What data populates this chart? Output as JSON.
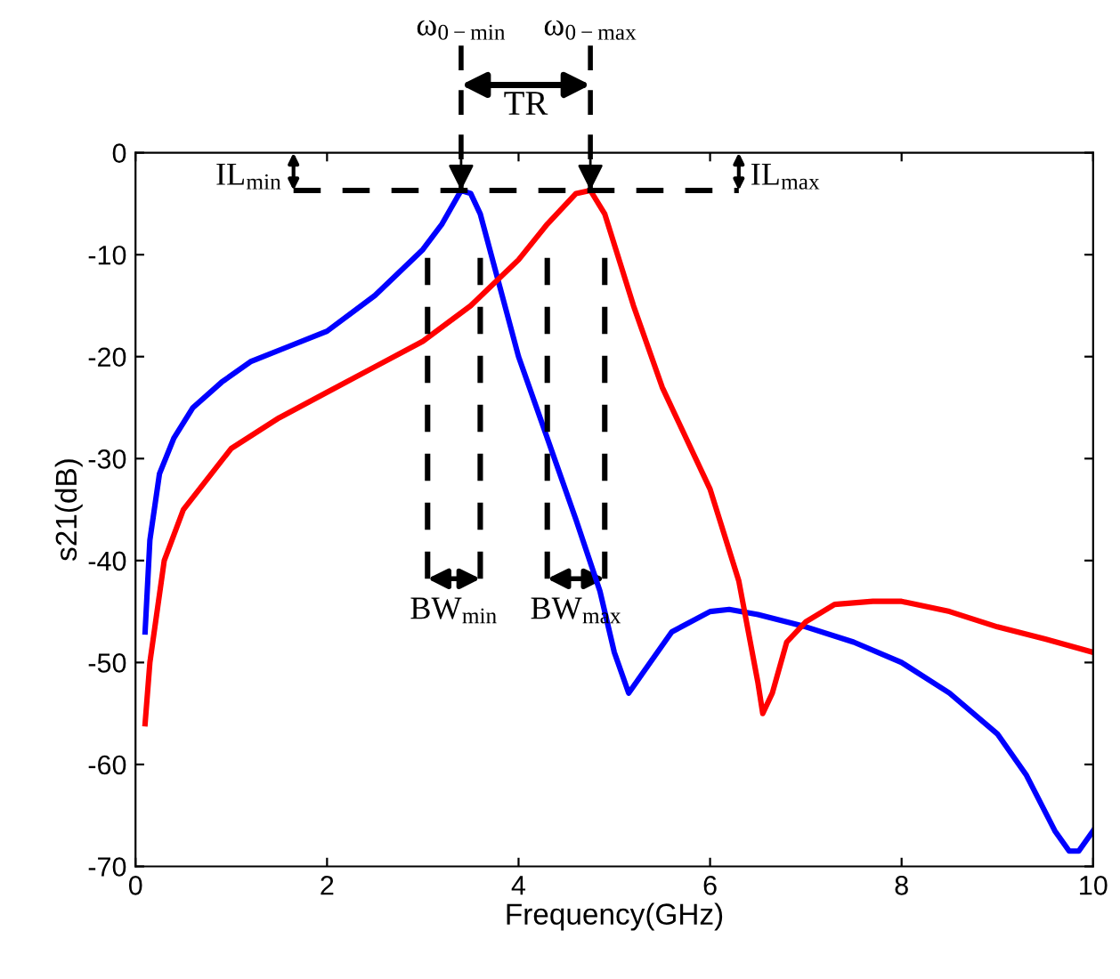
{
  "chart_data": {
    "type": "line",
    "xlabel": "Frequency(GHz)",
    "ylabel": "s21(dB)",
    "xlim": [
      0,
      10
    ],
    "xticks": [
      0,
      2,
      4,
      6,
      8,
      10
    ],
    "ylim": [
      -70,
      0
    ],
    "yticks": [
      -70,
      -60,
      -50,
      -40,
      -30,
      -20,
      -10,
      0
    ],
    "grid": false,
    "legend": false,
    "line_style": "solid",
    "marker": "none",
    "series": [
      {
        "color": "#0000ff",
        "x": [
          0.1,
          0.15,
          0.25,
          0.4,
          0.6,
          0.9,
          1.2,
          1.6,
          2.0,
          2.5,
          3.0,
          3.2,
          3.4,
          3.5,
          3.6,
          3.8,
          4.0,
          4.3,
          4.6,
          4.85,
          5.0,
          5.15,
          5.3,
          5.6,
          6.0,
          6.2,
          6.5,
          7.0,
          7.5,
          8.0,
          8.5,
          9.0,
          9.3,
          9.6,
          9.75,
          9.85,
          10.0
        ],
        "values": [
          -47,
          -38,
          -31.5,
          -28,
          -25,
          -22.5,
          -20.5,
          -19,
          -17.5,
          -14,
          -9.5,
          -7,
          -3.7,
          -4,
          -6,
          -13,
          -20,
          -28,
          -36,
          -43,
          -49,
          -53,
          -51,
          -47,
          -45,
          -44.8,
          -45.3,
          -46.5,
          -48,
          -50,
          -53,
          -57,
          -61,
          -66.5,
          -68.5,
          -68.5,
          -66.5
        ]
      },
      {
        "color": "#ff0000",
        "x": [
          0.1,
          0.15,
          0.3,
          0.5,
          1.0,
          1.5,
          2.0,
          2.5,
          3.0,
          3.5,
          4.0,
          4.3,
          4.6,
          4.75,
          4.9,
          5.2,
          5.5,
          6.0,
          6.3,
          6.5,
          6.55,
          6.65,
          6.8,
          7.0,
          7.3,
          7.7,
          8.0,
          8.5,
          9.0,
          9.5,
          10.0
        ],
        "values": [
          -56,
          -50,
          -40,
          -35,
          -29,
          -26,
          -23.5,
          -21,
          -18.5,
          -15,
          -10.5,
          -7,
          -4,
          -3.7,
          -6,
          -15,
          -23,
          -33,
          -42,
          -52,
          -55,
          -53,
          -48,
          -46,
          -44.3,
          -44,
          -44,
          -45,
          -46.5,
          -47.7,
          -49
        ]
      }
    ],
    "ref_lines": [
      {
        "axis": "x",
        "value": 3.4,
        "label": "ω$_{0−min}$",
        "color": "#000000",
        "line_style": "dashed"
      },
      {
        "axis": "x",
        "value": 4.75,
        "label": "ω$_{0−max}$",
        "color": "#000000",
        "line_style": "dashed"
      },
      {
        "axis": "y",
        "value": -3.7,
        "color": "#000000",
        "line_style": "dashed"
      },
      {
        "axis": "x",
        "value": 3.05,
        "color": "#000000",
        "line_style": "dashed"
      },
      {
        "axis": "x",
        "value": 3.6,
        "color": "#000000",
        "line_style": "dashed"
      },
      {
        "axis": "x",
        "value": 4.3,
        "color": "#000000",
        "line_style": "dashed"
      },
      {
        "axis": "x",
        "value": 4.9,
        "color": "#000000",
        "line_style": "dashed"
      }
    ],
    "annotations": [
      "TR",
      "BW$_{min}$",
      "BW$_{max}$",
      {
        "text": "IL$_{min}$",
        "x": 1.65,
        "y": -3.7
      },
      {
        "text": "IL$_{max}$",
        "x": 6.3,
        "y": -3.7
      }
    ]
  }
}
